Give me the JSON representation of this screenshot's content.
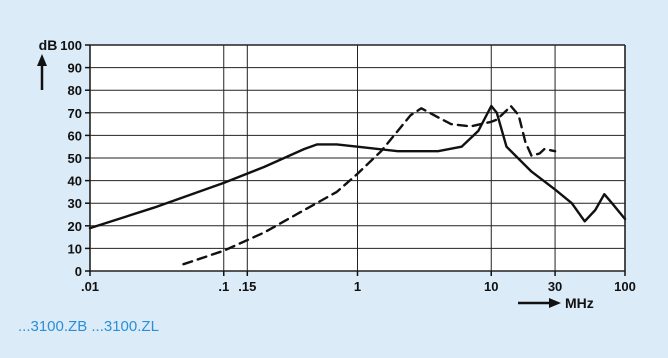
{
  "caption": "...3100.ZB ...3100.ZL",
  "colors": {
    "panel_bg": "#dcebf8",
    "plot_bg": "#ffffff",
    "grid": "#222222",
    "curve": "#111111",
    "caption": "#2a8fd6"
  },
  "chart_data": {
    "type": "line",
    "title": "",
    "ylabel": "dB",
    "xlabel": "MHz",
    "x_scale": "log",
    "xlim": [
      0.01,
      100
    ],
    "ylim": [
      0,
      100
    ],
    "grid": true,
    "x_ticks": [
      {
        "value": 0.01,
        "label": ".01"
      },
      {
        "value": 0.1,
        "label": ".1"
      },
      {
        "value": 0.15,
        "label": ".15"
      },
      {
        "value": 1,
        "label": "1"
      },
      {
        "value": 10,
        "label": "10"
      },
      {
        "value": 30,
        "label": "30"
      },
      {
        "value": 100,
        "label": "100"
      }
    ],
    "y_ticks": [
      0,
      10,
      20,
      30,
      40,
      50,
      60,
      70,
      80,
      90,
      100
    ],
    "series": [
      {
        "style": "solid",
        "points": [
          [
            0.01,
            19
          ],
          [
            0.03,
            28
          ],
          [
            0.1,
            39
          ],
          [
            0.2,
            46
          ],
          [
            0.4,
            54
          ],
          [
            0.5,
            56
          ],
          [
            0.7,
            56
          ],
          [
            1,
            55
          ],
          [
            2,
            53
          ],
          [
            4,
            53
          ],
          [
            6,
            55
          ],
          [
            8,
            62
          ],
          [
            10,
            73
          ],
          [
            11,
            70
          ],
          [
            13,
            55
          ],
          [
            20,
            44
          ],
          [
            30,
            36
          ],
          [
            40,
            30
          ],
          [
            50,
            22
          ],
          [
            60,
            27
          ],
          [
            70,
            34
          ],
          [
            80,
            30
          ],
          [
            100,
            23
          ]
        ]
      },
      {
        "style": "dashed",
        "points": [
          [
            0.05,
            3
          ],
          [
            0.1,
            9
          ],
          [
            0.2,
            17
          ],
          [
            0.4,
            27
          ],
          [
            0.7,
            35
          ],
          [
            1,
            43
          ],
          [
            1.5,
            53
          ],
          [
            2,
            62
          ],
          [
            2.5,
            69
          ],
          [
            3,
            72
          ],
          [
            4,
            68
          ],
          [
            5,
            65
          ],
          [
            7,
            64
          ],
          [
            10,
            66
          ],
          [
            11,
            67
          ],
          [
            13,
            71
          ],
          [
            14,
            73
          ],
          [
            16,
            69
          ],
          [
            18,
            57
          ],
          [
            20,
            51
          ],
          [
            23,
            52
          ],
          [
            25,
            54
          ],
          [
            30,
            53
          ]
        ]
      }
    ]
  }
}
